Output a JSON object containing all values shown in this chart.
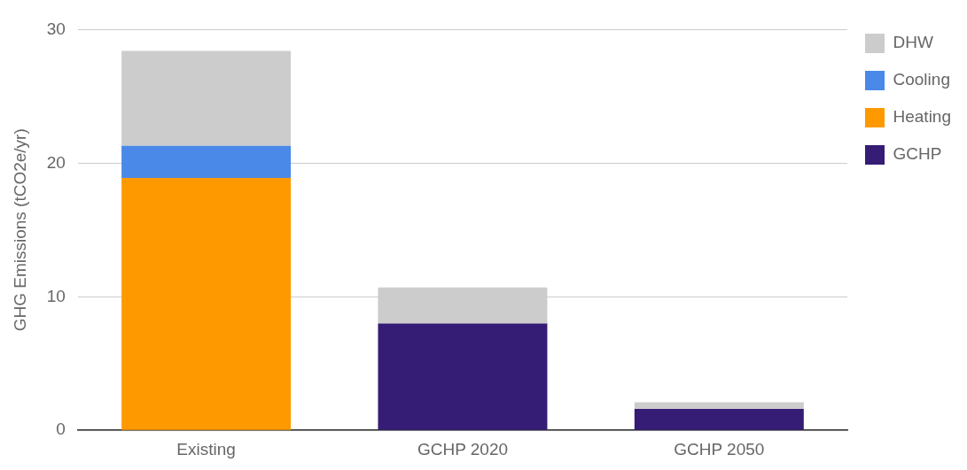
{
  "chart_data": {
    "type": "bar",
    "stacked": true,
    "ylabel": "GHG Emissions (tCO2e/yr)",
    "categories": [
      "Existing",
      "GCHP 2020",
      "GCHP 2050"
    ],
    "series": [
      {
        "name": "GCHP",
        "color": "#351c75",
        "values": [
          null,
          8.0,
          1.6
        ]
      },
      {
        "name": "Heating",
        "color": "#ff9900",
        "values": [
          18.9,
          null,
          null
        ]
      },
      {
        "name": "Cooling",
        "color": "#4a89e8",
        "values": [
          2.4,
          null,
          null
        ]
      },
      {
        "name": "DHW",
        "color": "#cccccc",
        "values": [
          7.1,
          2.7,
          0.5
        ]
      }
    ],
    "ylim": [
      0,
      30
    ],
    "yticks": [
      0,
      10,
      20,
      30
    ],
    "grid": "y",
    "legend": "top right"
  }
}
